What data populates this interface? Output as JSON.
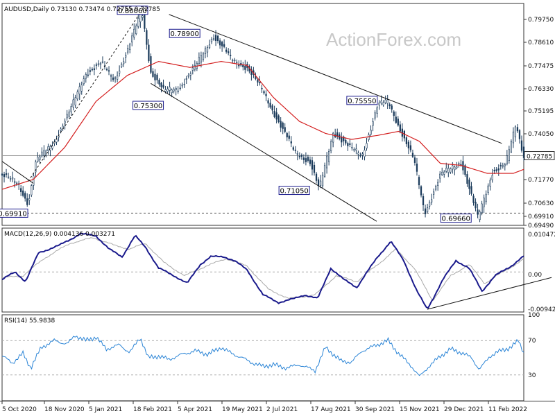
{
  "chart_data": [
    {
      "type": "candlestick",
      "header": "AUDUSD,Daily  0.73130 0.73474 0.72755 0.72785",
      "watermark": "ActionForex.com",
      "current_price_label": "0.72785",
      "ylim": [
        0.693,
        0.804
      ],
      "y_ticks": [
        "0.79750",
        "0.78610",
        "0.77475",
        "0.76330",
        "0.75195",
        "0.74050",
        "0.72785",
        "0.71770",
        "0.70630",
        "0.69910",
        "0.69490"
      ],
      "x_ticks": [
        "5 Oct 2020",
        "18 Nov 2020",
        "5 Jan 2021",
        "18 Feb 2021",
        "5 Apr 2021",
        "19 May 2021",
        "2 Jul 2021",
        "17 Aug 2021",
        "30 Sep 2021",
        "15 Nov 2021",
        "29 Dec 2021",
        "11 Feb 2022"
      ],
      "price_path": [
        {
          "t": 0.0,
          "v": 0.718
        },
        {
          "t": 0.03,
          "v": 0.714
        },
        {
          "t": 0.05,
          "v": 0.704
        },
        {
          "t": 0.065,
          "v": 0.725
        },
        {
          "t": 0.1,
          "v": 0.735
        },
        {
          "t": 0.13,
          "v": 0.75
        },
        {
          "t": 0.16,
          "v": 0.769
        },
        {
          "t": 0.19,
          "v": 0.774
        },
        {
          "t": 0.215,
          "v": 0.766
        },
        {
          "t": 0.24,
          "v": 0.78
        },
        {
          "t": 0.268,
          "v": 0.8006
        },
        {
          "t": 0.285,
          "v": 0.77
        },
        {
          "t": 0.31,
          "v": 0.76
        },
        {
          "t": 0.34,
          "v": 0.762
        },
        {
          "t": 0.37,
          "v": 0.772
        },
        {
          "t": 0.405,
          "v": 0.788
        },
        {
          "t": 0.44,
          "v": 0.776
        },
        {
          "t": 0.47,
          "v": 0.772
        },
        {
          "t": 0.5,
          "v": 0.76
        },
        {
          "t": 0.53,
          "v": 0.745
        },
        {
          "t": 0.56,
          "v": 0.73
        },
        {
          "t": 0.59,
          "v": 0.725
        },
        {
          "t": 0.608,
          "v": 0.7108
        },
        {
          "t": 0.635,
          "v": 0.74
        },
        {
          "t": 0.665,
          "v": 0.732
        },
        {
          "t": 0.69,
          "v": 0.728
        },
        {
          "t": 0.72,
          "v": 0.753
        },
        {
          "t": 0.74,
          "v": 0.755
        },
        {
          "t": 0.765,
          "v": 0.74
        },
        {
          "t": 0.79,
          "v": 0.725
        },
        {
          "t": 0.81,
          "v": 0.6993
        },
        {
          "t": 0.84,
          "v": 0.718
        },
        {
          "t": 0.88,
          "v": 0.725
        },
        {
          "t": 0.912,
          "v": 0.6966
        },
        {
          "t": 0.94,
          "v": 0.72
        },
        {
          "t": 0.965,
          "v": 0.723
        },
        {
          "t": 0.985,
          "v": 0.744
        },
        {
          "t": 1.0,
          "v": 0.7278
        }
      ],
      "moving_average_path": [
        {
          "t": 0.0,
          "v": 0.711
        },
        {
          "t": 0.06,
          "v": 0.716
        },
        {
          "t": 0.12,
          "v": 0.732
        },
        {
          "t": 0.18,
          "v": 0.755
        },
        {
          "t": 0.24,
          "v": 0.768
        },
        {
          "t": 0.3,
          "v": 0.775
        },
        {
          "t": 0.36,
          "v": 0.772
        },
        {
          "t": 0.42,
          "v": 0.775
        },
        {
          "t": 0.47,
          "v": 0.773
        },
        {
          "t": 0.52,
          "v": 0.757
        },
        {
          "t": 0.57,
          "v": 0.745
        },
        {
          "t": 0.62,
          "v": 0.739
        },
        {
          "t": 0.67,
          "v": 0.736
        },
        {
          "t": 0.72,
          "v": 0.738
        },
        {
          "t": 0.76,
          "v": 0.74
        },
        {
          "t": 0.8,
          "v": 0.735
        },
        {
          "t": 0.84,
          "v": 0.724
        },
        {
          "t": 0.88,
          "v": 0.723
        },
        {
          "t": 0.93,
          "v": 0.719
        },
        {
          "t": 0.98,
          "v": 0.719
        },
        {
          "t": 1.0,
          "v": 0.721
        }
      ],
      "trendlines": [
        {
          "name": "falling-channel-resistance",
          "from": {
            "t": 0.32,
            "v": 0.7985
          },
          "to": {
            "t": 0.958,
            "v": 0.734
          }
        },
        {
          "name": "falling-channel-support",
          "from": {
            "t": 0.285,
            "v": 0.764
          },
          "to": {
            "t": 0.718,
            "v": 0.695
          }
        },
        {
          "name": "early-falling-line",
          "from": {
            "t": 0.0,
            "v": 0.725
          },
          "to": {
            "t": 0.06,
            "v": 0.714
          }
        },
        {
          "name": "rally-line",
          "from": {
            "t": 0.05,
            "v": 0.715
          },
          "to": {
            "t": 0.268,
            "v": 0.8006
          },
          "dashed": true
        }
      ],
      "horizontal_levels": [
        {
          "name": "low-level",
          "value": 0.6991,
          "dashed": true
        },
        {
          "name": "current-price",
          "value": 0.72785,
          "dashed": false
        }
      ],
      "annotations": [
        {
          "text": "0.80060",
          "t": 0.25,
          "v": 0.8006
        },
        {
          "text": "0.78900",
          "t": 0.35,
          "v": 0.789
        },
        {
          "text": "0.75300",
          "t": 0.28,
          "v": 0.753
        },
        {
          "text": "0.75550",
          "t": 0.69,
          "v": 0.7555
        },
        {
          "text": "0.71050",
          "t": 0.56,
          "v": 0.7105
        },
        {
          "text": "0.69910",
          "t": 0.02,
          "v": 0.6991
        },
        {
          "text": "0.69660",
          "t": 0.87,
          "v": 0.6966
        }
      ]
    },
    {
      "type": "line",
      "header": "MACD(12,26,9) 0.004136 0.003271",
      "ylim": [
        -0.0105,
        0.0115
      ],
      "y_ticks": [
        "0.010472",
        "0.00",
        "-0.009426"
      ],
      "series": [
        {
          "name": "MACD",
          "color": "#1a1a8c",
          "points": [
            {
              "t": 0.0,
              "v": -0.002
            },
            {
              "t": 0.025,
              "v": 0.0
            },
            {
              "t": 0.045,
              "v": -0.0025
            },
            {
              "t": 0.07,
              "v": 0.005
            },
            {
              "t": 0.11,
              "v": 0.007
            },
            {
              "t": 0.15,
              "v": 0.01
            },
            {
              "t": 0.18,
              "v": 0.0095
            },
            {
              "t": 0.205,
              "v": 0.006
            },
            {
              "t": 0.23,
              "v": 0.004
            },
            {
              "t": 0.255,
              "v": 0.0095
            },
            {
              "t": 0.275,
              "v": 0.0065
            },
            {
              "t": 0.3,
              "v": 0.001
            },
            {
              "t": 0.33,
              "v": -0.001
            },
            {
              "t": 0.355,
              "v": -0.003
            },
            {
              "t": 0.38,
              "v": 0.002
            },
            {
              "t": 0.4,
              "v": 0.004
            },
            {
              "t": 0.425,
              "v": 0.004
            },
            {
              "t": 0.445,
              "v": 0.003
            },
            {
              "t": 0.47,
              "v": 0.0005
            },
            {
              "t": 0.5,
              "v": -0.006
            },
            {
              "t": 0.53,
              "v": -0.008
            },
            {
              "t": 0.56,
              "v": -0.007
            },
            {
              "t": 0.58,
              "v": -0.006
            },
            {
              "t": 0.605,
              "v": -0.007
            },
            {
              "t": 0.63,
              "v": 0.001
            },
            {
              "t": 0.655,
              "v": -0.002
            },
            {
              "t": 0.68,
              "v": -0.004
            },
            {
              "t": 0.72,
              "v": 0.004
            },
            {
              "t": 0.745,
              "v": 0.008
            },
            {
              "t": 0.77,
              "v": 0.003
            },
            {
              "t": 0.795,
              "v": -0.005
            },
            {
              "t": 0.815,
              "v": -0.0098
            },
            {
              "t": 0.845,
              "v": -0.002
            },
            {
              "t": 0.87,
              "v": 0.003
            },
            {
              "t": 0.895,
              "v": 0.001
            },
            {
              "t": 0.92,
              "v": -0.005
            },
            {
              "t": 0.945,
              "v": -0.001
            },
            {
              "t": 0.975,
              "v": 0.0015
            },
            {
              "t": 1.0,
              "v": 0.0041
            }
          ]
        },
        {
          "name": "Signal",
          "color": "#a8a8a8",
          "points": [
            {
              "t": 0.0,
              "v": -0.0015
            },
            {
              "t": 0.04,
              "v": -0.001
            },
            {
              "t": 0.08,
              "v": 0.0035
            },
            {
              "t": 0.13,
              "v": 0.0075
            },
            {
              "t": 0.175,
              "v": 0.009
            },
            {
              "t": 0.215,
              "v": 0.007
            },
            {
              "t": 0.245,
              "v": 0.006
            },
            {
              "t": 0.275,
              "v": 0.0075
            },
            {
              "t": 0.31,
              "v": 0.0025
            },
            {
              "t": 0.35,
              "v": -0.001
            },
            {
              "t": 0.39,
              "v": 0.0015
            },
            {
              "t": 0.43,
              "v": 0.0035
            },
            {
              "t": 0.47,
              "v": 0.0015
            },
            {
              "t": 0.51,
              "v": -0.0045
            },
            {
              "t": 0.55,
              "v": -0.007
            },
            {
              "t": 0.6,
              "v": -0.006
            },
            {
              "t": 0.64,
              "v": -0.001
            },
            {
              "t": 0.68,
              "v": -0.0025
            },
            {
              "t": 0.725,
              "v": 0.0025
            },
            {
              "t": 0.755,
              "v": 0.006
            },
            {
              "t": 0.79,
              "v": 0.001
            },
            {
              "t": 0.825,
              "v": -0.0075
            },
            {
              "t": 0.86,
              "v": -0.001
            },
            {
              "t": 0.895,
              "v": 0.002
            },
            {
              "t": 0.925,
              "v": -0.003
            },
            {
              "t": 0.96,
              "v": 0.0
            },
            {
              "t": 1.0,
              "v": 0.0033
            }
          ]
        }
      ],
      "trendlines": [
        {
          "name": "macd-support",
          "from": {
            "t": 0.815,
            "v": -0.0098
          },
          "to": {
            "t": 1.0,
            "v": 0.0
          }
        }
      ]
    },
    {
      "type": "line",
      "header": "RSI(14) 55.9838",
      "ylim": [
        0,
        100
      ],
      "y_ticks": [
        "100",
        "70",
        "30",
        "0"
      ],
      "levels": [
        70,
        30
      ],
      "series": [
        {
          "name": "RSI",
          "color": "#2a84d6",
          "points": [
            {
              "t": 0.0,
              "v": 52
            },
            {
              "t": 0.02,
              "v": 44
            },
            {
              "t": 0.04,
              "v": 55
            },
            {
              "t": 0.055,
              "v": 38
            },
            {
              "t": 0.075,
              "v": 62
            },
            {
              "t": 0.1,
              "v": 70
            },
            {
              "t": 0.125,
              "v": 66
            },
            {
              "t": 0.14,
              "v": 76
            },
            {
              "t": 0.16,
              "v": 70
            },
            {
              "t": 0.18,
              "v": 74
            },
            {
              "t": 0.2,
              "v": 60
            },
            {
              "t": 0.225,
              "v": 65
            },
            {
              "t": 0.245,
              "v": 56
            },
            {
              "t": 0.265,
              "v": 74
            },
            {
              "t": 0.28,
              "v": 50
            },
            {
              "t": 0.3,
              "v": 52
            },
            {
              "t": 0.32,
              "v": 48
            },
            {
              "t": 0.345,
              "v": 54
            },
            {
              "t": 0.37,
              "v": 58
            },
            {
              "t": 0.395,
              "v": 54
            },
            {
              "t": 0.42,
              "v": 62
            },
            {
              "t": 0.44,
              "v": 55
            },
            {
              "t": 0.46,
              "v": 50
            },
            {
              "t": 0.48,
              "v": 44
            },
            {
              "t": 0.5,
              "v": 40
            },
            {
              "t": 0.52,
              "v": 42
            },
            {
              "t": 0.545,
              "v": 38
            },
            {
              "t": 0.57,
              "v": 42
            },
            {
              "t": 0.6,
              "v": 35
            },
            {
              "t": 0.62,
              "v": 62
            },
            {
              "t": 0.65,
              "v": 46
            },
            {
              "t": 0.67,
              "v": 45
            },
            {
              "t": 0.69,
              "v": 58
            },
            {
              "t": 0.715,
              "v": 64
            },
            {
              "t": 0.74,
              "v": 70
            },
            {
              "t": 0.76,
              "v": 55
            },
            {
              "t": 0.785,
              "v": 40
            },
            {
              "t": 0.8,
              "v": 28
            },
            {
              "t": 0.815,
              "v": 38
            },
            {
              "t": 0.84,
              "v": 52
            },
            {
              "t": 0.86,
              "v": 60
            },
            {
              "t": 0.88,
              "v": 56
            },
            {
              "t": 0.9,
              "v": 50
            },
            {
              "t": 0.915,
              "v": 36
            },
            {
              "t": 0.935,
              "v": 52
            },
            {
              "t": 0.955,
              "v": 58
            },
            {
              "t": 0.975,
              "v": 62
            },
            {
              "t": 0.99,
              "v": 70
            },
            {
              "t": 1.0,
              "v": 56
            }
          ]
        }
      ]
    }
  ]
}
